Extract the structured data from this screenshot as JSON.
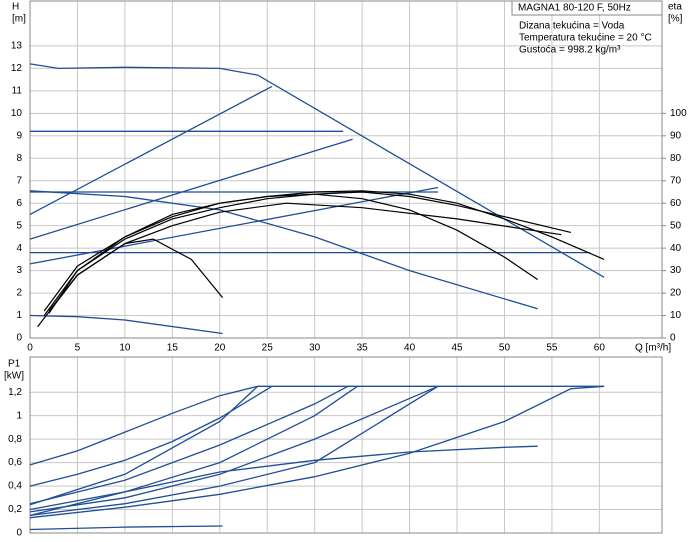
{
  "chart_data": [
    {
      "type": "line",
      "title": "MAGNA1 80-120 F, 50Hz",
      "annotations": [
        "Dizana tekućina = Voda",
        "Temperatura tekućine = 20 °C",
        "Gustoća = 998.2 kg/m³"
      ],
      "y_label": "H",
      "y_unit": "[m]",
      "y2_label": "eta",
      "y2_unit": "[%]",
      "x_label": "Q [m³/h]",
      "xlim": [
        0,
        66.6
      ],
      "xticks": [
        0,
        5,
        10,
        15,
        20,
        25,
        30,
        35,
        40,
        45,
        50,
        55,
        60
      ],
      "ylim": [
        0,
        15
      ],
      "yticks": [
        0,
        1,
        2,
        3,
        4,
        5,
        6,
        7,
        8,
        9,
        10,
        11,
        12,
        13
      ],
      "y2lim": [
        0,
        150
      ],
      "y2ticks": [
        0,
        10,
        20,
        30,
        40,
        50,
        60,
        70,
        80,
        90,
        100
      ],
      "grid": true,
      "series": [
        {
          "color": "#1f4e96",
          "x": [
            0,
            3,
            10,
            20,
            24,
            60.5
          ],
          "values": [
            12.2,
            12.0,
            12.05,
            12.0,
            11.7,
            2.7
          ]
        },
        {
          "color": "#1f4e96",
          "x": [
            0,
            33
          ],
          "values": [
            9.2,
            9.2
          ]
        },
        {
          "color": "#1f4e96",
          "x": [
            0,
            43
          ],
          "values": [
            6.5,
            6.5
          ]
        },
        {
          "color": "#1f4e96",
          "x": [
            0,
            59
          ],
          "values": [
            3.8,
            3.8
          ]
        },
        {
          "color": "#1f4e96",
          "x": [
            0,
            25.5
          ],
          "values": [
            5.5,
            11.2
          ]
        },
        {
          "color": "#1f4e96",
          "x": [
            0,
            34
          ],
          "values": [
            4.4,
            8.85
          ]
        },
        {
          "color": "#1f4e96",
          "x": [
            0,
            43
          ],
          "values": [
            3.3,
            6.7
          ]
        },
        {
          "color": "#1f4e96",
          "x": [
            0,
            10,
            20,
            30,
            40,
            53.5
          ],
          "values": [
            6.55,
            6.3,
            5.7,
            4.5,
            3.0,
            1.3
          ]
        },
        {
          "color": "#1f4e96",
          "x": [
            0,
            5,
            10,
            20.3
          ],
          "values": [
            1.0,
            0.95,
            0.8,
            0.2
          ]
        },
        {
          "color": "#000000",
          "axis": "y2",
          "x": [
            0.8,
            5,
            10,
            13,
            17,
            20.3
          ],
          "values": [
            5,
            28,
            42,
            44,
            35,
            18
          ]
        },
        {
          "color": "#000000",
          "axis": "y2",
          "x": [
            1.5,
            5,
            10,
            15,
            20,
            25,
            30,
            35,
            40,
            45,
            50,
            53.5
          ],
          "values": [
            10,
            30,
            45,
            55,
            60,
            63,
            64,
            62,
            57,
            48,
            36,
            26
          ]
        },
        {
          "color": "#000000",
          "axis": "y2",
          "x": [
            1.5,
            5,
            10,
            15,
            20,
            25,
            30,
            35,
            40,
            45,
            50,
            55,
            60.5
          ],
          "values": [
            12,
            32,
            45,
            54,
            60,
            63,
            65,
            65.5,
            64,
            60,
            53,
            45,
            35
          ]
        },
        {
          "color": "#000000",
          "axis": "y2",
          "x": [
            2,
            5,
            10,
            15,
            20,
            25,
            30,
            35,
            40,
            45,
            50,
            57
          ],
          "values": [
            11,
            30,
            44,
            53,
            58,
            62,
            64,
            65,
            63,
            59,
            54,
            47
          ]
        },
        {
          "color": "#000000",
          "axis": "y2",
          "x": [
            2,
            5,
            10,
            15,
            20,
            27,
            35,
            45,
            56
          ],
          "values": [
            12,
            28,
            42,
            50,
            56,
            60,
            58,
            53,
            46
          ]
        }
      ]
    },
    {
      "type": "line",
      "y_label": "P1",
      "y_unit": "[kW]",
      "xlim": [
        0,
        66.6
      ],
      "xticks": [
        0,
        5,
        10,
        15,
        20,
        25,
        30,
        35,
        40,
        45,
        50,
        55,
        60
      ],
      "ylim": [
        0,
        1.5
      ],
      "yticks": [
        0,
        {
          "value": 0.2,
          "label": "0,2"
        },
        {
          "value": 0.4,
          "label": "0,4"
        },
        {
          "value": 0.6,
          "label": "0,6"
        },
        {
          "value": 0.8,
          "label": "0,8"
        },
        {
          "value": 1,
          "label": "1"
        },
        {
          "value": 1.2,
          "label": "1,2"
        }
      ],
      "grid": true,
      "series": [
        {
          "color": "#1f4e96",
          "x": [
            0,
            5,
            10,
            15,
            20,
            24,
            60.5
          ],
          "values": [
            0.58,
            0.7,
            0.86,
            1.02,
            1.17,
            1.25,
            1.25
          ]
        },
        {
          "color": "#1f4e96",
          "x": [
            0,
            5,
            10,
            15,
            20,
            25.5
          ],
          "values": [
            0.4,
            0.5,
            0.62,
            0.78,
            0.98,
            1.25
          ]
        },
        {
          "color": "#1f4e96",
          "x": [
            0,
            10,
            20,
            24
          ],
          "values": [
            0.24,
            0.5,
            0.95,
            1.25
          ]
        },
        {
          "color": "#1f4e96",
          "x": [
            0,
            10,
            20,
            30,
            33.5
          ],
          "values": [
            0.25,
            0.45,
            0.75,
            1.1,
            1.25
          ]
        },
        {
          "color": "#1f4e96",
          "x": [
            0,
            10,
            20,
            30,
            34.5
          ],
          "values": [
            0.2,
            0.35,
            0.6,
            1.0,
            1.25
          ]
        },
        {
          "color": "#1f4e96",
          "x": [
            0,
            10,
            20,
            30,
            43
          ],
          "values": [
            0.18,
            0.3,
            0.5,
            0.8,
            1.25
          ]
        },
        {
          "color": "#1f4e96",
          "x": [
            0,
            10,
            20,
            30,
            43
          ],
          "values": [
            0.15,
            0.25,
            0.4,
            0.6,
            1.25
          ]
        },
        {
          "color": "#1f4e96",
          "x": [
            0,
            10,
            20,
            30,
            40,
            50,
            57,
            60.5
          ],
          "values": [
            0.13,
            0.22,
            0.33,
            0.48,
            0.68,
            0.95,
            1.23,
            1.25
          ]
        },
        {
          "color": "#1f4e96",
          "x": [
            0,
            10,
            20,
            30,
            40,
            50,
            53.5
          ],
          "values": [
            0.15,
            0.35,
            0.52,
            0.62,
            0.69,
            0.73,
            0.74
          ]
        },
        {
          "color": "#1f4e96",
          "x": [
            0,
            10,
            20.3
          ],
          "values": [
            0.03,
            0.05,
            0.06
          ]
        }
      ]
    }
  ]
}
